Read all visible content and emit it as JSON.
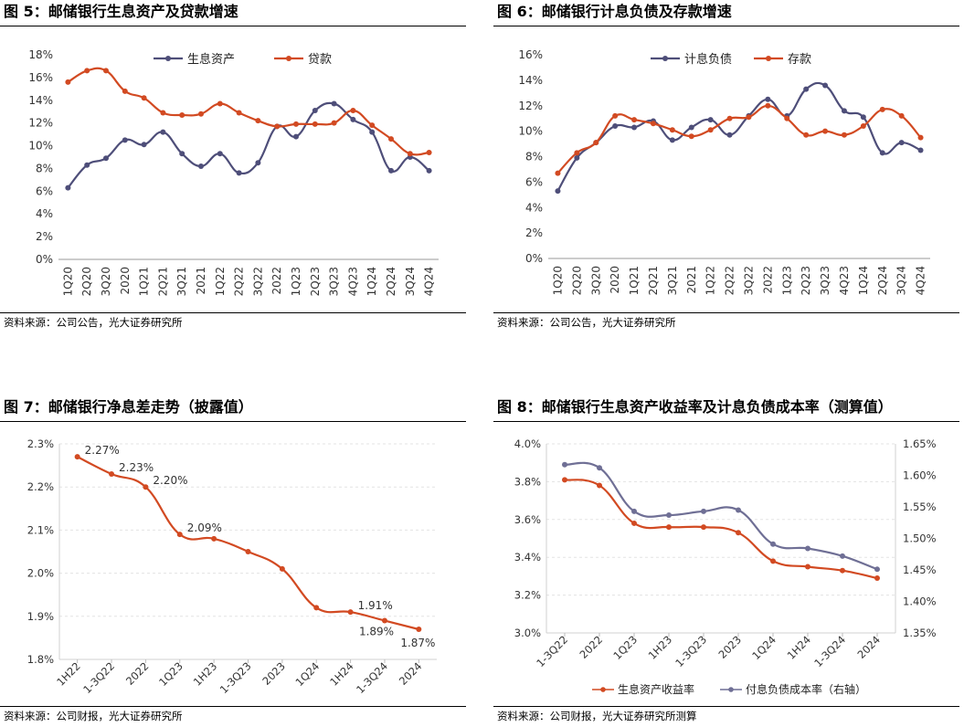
{
  "panels": [
    {
      "title": "图 5：邮储银行生息资产及贷款增速",
      "source": "资料来源：公司公告，光大证券研究所",
      "chart_data": {
        "type": "line",
        "categories": [
          "1Q20",
          "2Q20",
          "3Q20",
          "2020",
          "1Q21",
          "2Q21",
          "3Q21",
          "2021",
          "1Q22",
          "2Q22",
          "3Q22",
          "2022",
          "1Q23",
          "2Q23",
          "3Q23",
          "4Q23",
          "1Q24",
          "2Q24",
          "3Q24",
          "4Q24"
        ],
        "ylim": [
          0,
          18
        ],
        "yticks": [
          0,
          2,
          4,
          6,
          8,
          10,
          12,
          14,
          16,
          18
        ],
        "tick_format": "percent0",
        "legend": "top-center",
        "series": [
          {
            "name": "生息资产",
            "color": "#4e4e79",
            "values": [
              6.3,
              8.3,
              8.9,
              10.5,
              10.1,
              11.2,
              9.3,
              8.2,
              9.3,
              7.6,
              8.5,
              11.7,
              10.8,
              13.1,
              13.7,
              12.3,
              11.2,
              7.8,
              9.0,
              7.8
            ]
          },
          {
            "name": "贷款",
            "color": "#d24a22",
            "values": [
              15.6,
              16.6,
              16.6,
              14.8,
              14.2,
              12.9,
              12.7,
              12.8,
              13.7,
              12.9,
              12.2,
              11.7,
              11.9,
              11.9,
              12.0,
              13.1,
              11.8,
              10.6,
              9.3,
              9.4
            ]
          }
        ]
      }
    },
    {
      "title": "图 6：邮储银行计息负债及存款增速",
      "source": "资料来源：公司公告，光大证券研究所",
      "chart_data": {
        "type": "line",
        "categories": [
          "1Q20",
          "2Q20",
          "3Q20",
          "2020",
          "1Q21",
          "2Q21",
          "3Q21",
          "2021",
          "1Q22",
          "2Q22",
          "3Q22",
          "2022",
          "1Q23",
          "2Q23",
          "3Q23",
          "4Q23",
          "1Q24",
          "2Q24",
          "3Q24",
          "4Q24"
        ],
        "ylim": [
          0,
          16
        ],
        "yticks": [
          0,
          2,
          4,
          6,
          8,
          10,
          12,
          14,
          16
        ],
        "tick_format": "percent0",
        "legend": "top-center",
        "series": [
          {
            "name": "计息负债",
            "color": "#4e4e79",
            "values": [
              5.3,
              7.9,
              9.1,
              10.4,
              10.3,
              10.8,
              9.3,
              10.3,
              10.9,
              9.7,
              11.2,
              12.5,
              11.2,
              13.3,
              13.6,
              11.6,
              11.1,
              8.3,
              9.1,
              8.5
            ]
          },
          {
            "name": "存款",
            "color": "#d24a22",
            "values": [
              6.7,
              8.3,
              9.1,
              11.2,
              10.9,
              10.6,
              10.1,
              9.6,
              10.1,
              11.0,
              11.1,
              12.0,
              11.0,
              9.7,
              10.0,
              9.7,
              10.4,
              11.7,
              11.2,
              9.5
            ]
          }
        ]
      }
    },
    {
      "title": "图 7：邮储银行净息差走势（披露值）",
      "source": "资料来源：公司财报，光大证券研究所",
      "chart_data": {
        "type": "line",
        "categories": [
          "1H22",
          "1-3Q22",
          "2022",
          "1Q23",
          "1H23",
          "1-3Q23",
          "2023",
          "1Q24",
          "1H24",
          "1-3Q24",
          "2024"
        ],
        "ylim": [
          1.8,
          2.3
        ],
        "yticks": [
          1.8,
          1.9,
          2.0,
          2.1,
          2.2,
          2.3
        ],
        "tick_format": "percent1",
        "series": [
          {
            "color": "#d24a22",
            "values": [
              2.27,
              2.23,
              2.2,
              2.09,
              2.08,
              2.05,
              2.01,
              1.92,
              1.91,
              1.89,
              1.87
            ]
          }
        ],
        "annotations": [
          {
            "index": 0,
            "text": "2.27%"
          },
          {
            "index": 1,
            "text": "2.23%"
          },
          {
            "index": 2,
            "text": "2.20%"
          },
          {
            "index": 3,
            "text": "2.09%"
          },
          {
            "index": 8,
            "text": "1.91%"
          },
          {
            "index": 9,
            "text": "1.89%"
          },
          {
            "index": 10,
            "text": "1.87%"
          }
        ]
      }
    },
    {
      "title": "图 8：邮储银行生息资产收益率及计息负债成本率（测算值）",
      "source": "资料来源：公司财报，光大证券研究所测算",
      "chart_data": {
        "type": "line",
        "categories": [
          "1-3Q22",
          "2022",
          "1Q23",
          "1H23",
          "1-3Q23",
          "2023",
          "1Q24",
          "1H24",
          "1-3Q24",
          "2024"
        ],
        "ylim": [
          3.0,
          4.0
        ],
        "yticks": [
          3.0,
          3.2,
          3.4,
          3.6,
          3.8,
          4.0
        ],
        "y2lim": [
          1.35,
          1.65
        ],
        "y2ticks": [
          1.35,
          1.4,
          1.45,
          1.5,
          1.55,
          1.6,
          1.65
        ],
        "tick_format": "percent1",
        "y2_tick_format": "percent2",
        "legend": "bottom",
        "series": [
          {
            "name": "生息资产收益率",
            "color": "#d24a22",
            "axis": "left",
            "values": [
              3.81,
              3.78,
              3.58,
              3.56,
              3.56,
              3.53,
              3.38,
              3.35,
              3.33,
              3.29
            ]
          },
          {
            "name": "付息负债成本率（右轴）",
            "color": "#6f6f95",
            "axis": "right",
            "values": [
              1.617,
              1.612,
              1.543,
              1.537,
              1.543,
              1.545,
              1.491,
              1.484,
              1.472,
              1.451
            ]
          }
        ]
      }
    }
  ]
}
